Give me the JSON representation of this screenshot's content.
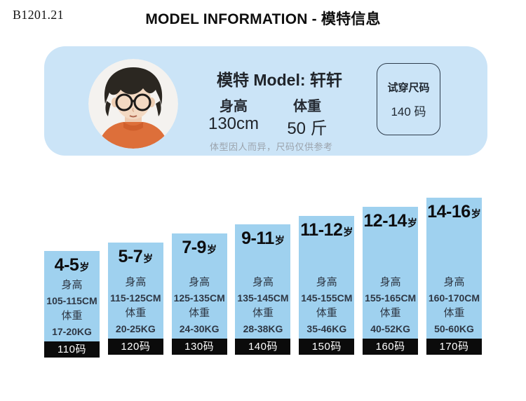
{
  "header": {
    "sku": "B1201.21",
    "title": "MODEL INFORMATION - 模特信息"
  },
  "model_card": {
    "name_line": "模特 Model: 轩轩",
    "height_label": "身高",
    "height_value": "130cm",
    "weight_label": "体重",
    "weight_value": "50 斤",
    "note": "体型因人而异，尺码仅供参考",
    "fit_box": {
      "line1": "试穿尺码",
      "line2": "140 码"
    },
    "avatar": "boy-model-photo"
  },
  "size_chart": {
    "height_label": "身高",
    "weight_label": "体重",
    "age_suffix": "岁",
    "columns": [
      {
        "age": "4-5",
        "height": "105-115CM",
        "weight": "17-20KG",
        "size": "110码"
      },
      {
        "age": "5-7",
        "height": "115-125CM",
        "weight": "20-25KG",
        "size": "120码"
      },
      {
        "age": "7-9",
        "height": "125-135CM",
        "weight": "24-30KG",
        "size": "130码"
      },
      {
        "age": "9-11",
        "height": "135-145CM",
        "weight": "28-38KG",
        "size": "140码"
      },
      {
        "age": "11-12",
        "height": "145-155CM",
        "weight": "35-46KG",
        "size": "150码"
      },
      {
        "age": "12-14",
        "height": "155-165CM",
        "weight": "40-52KG",
        "size": "160码"
      },
      {
        "age": "14-16",
        "height": "160-170CM",
        "weight": "50-60KG",
        "size": "170码"
      }
    ]
  },
  "chart_data": {
    "type": "bar",
    "title": "MODEL INFORMATION - 模特信息",
    "categories": [
      "110码",
      "120码",
      "130码",
      "140码",
      "150码",
      "160码",
      "170码"
    ],
    "series": [
      {
        "name": "age_range_years",
        "values": [
          "4-5岁",
          "5-7岁",
          "7-9岁",
          "9-11岁",
          "11-12岁",
          "12-14岁",
          "14-16岁"
        ]
      },
      {
        "name": "height_range_cm",
        "values": [
          "105-115",
          "115-125",
          "125-135",
          "135-145",
          "145-155",
          "155-165",
          "160-170"
        ]
      },
      {
        "name": "weight_range_kg",
        "values": [
          "17-20",
          "20-25",
          "24-30",
          "28-38",
          "35-46",
          "40-52",
          "50-60"
        ]
      }
    ],
    "legend_position": "none",
    "grid": false,
    "layout_hint": "seven light-blue columns ascending in height left to right, each with a black size-code base"
  },
  "colors": {
    "card_background": "#cbe4f7",
    "column_background": "#9fd1ef",
    "size_bar_background": "#0b0b0b",
    "size_bar_text": "#ffffff",
    "note_gray": "#9ba3ac",
    "text_dark": "#20242a",
    "sweater_orange": "#dd6f3a"
  }
}
